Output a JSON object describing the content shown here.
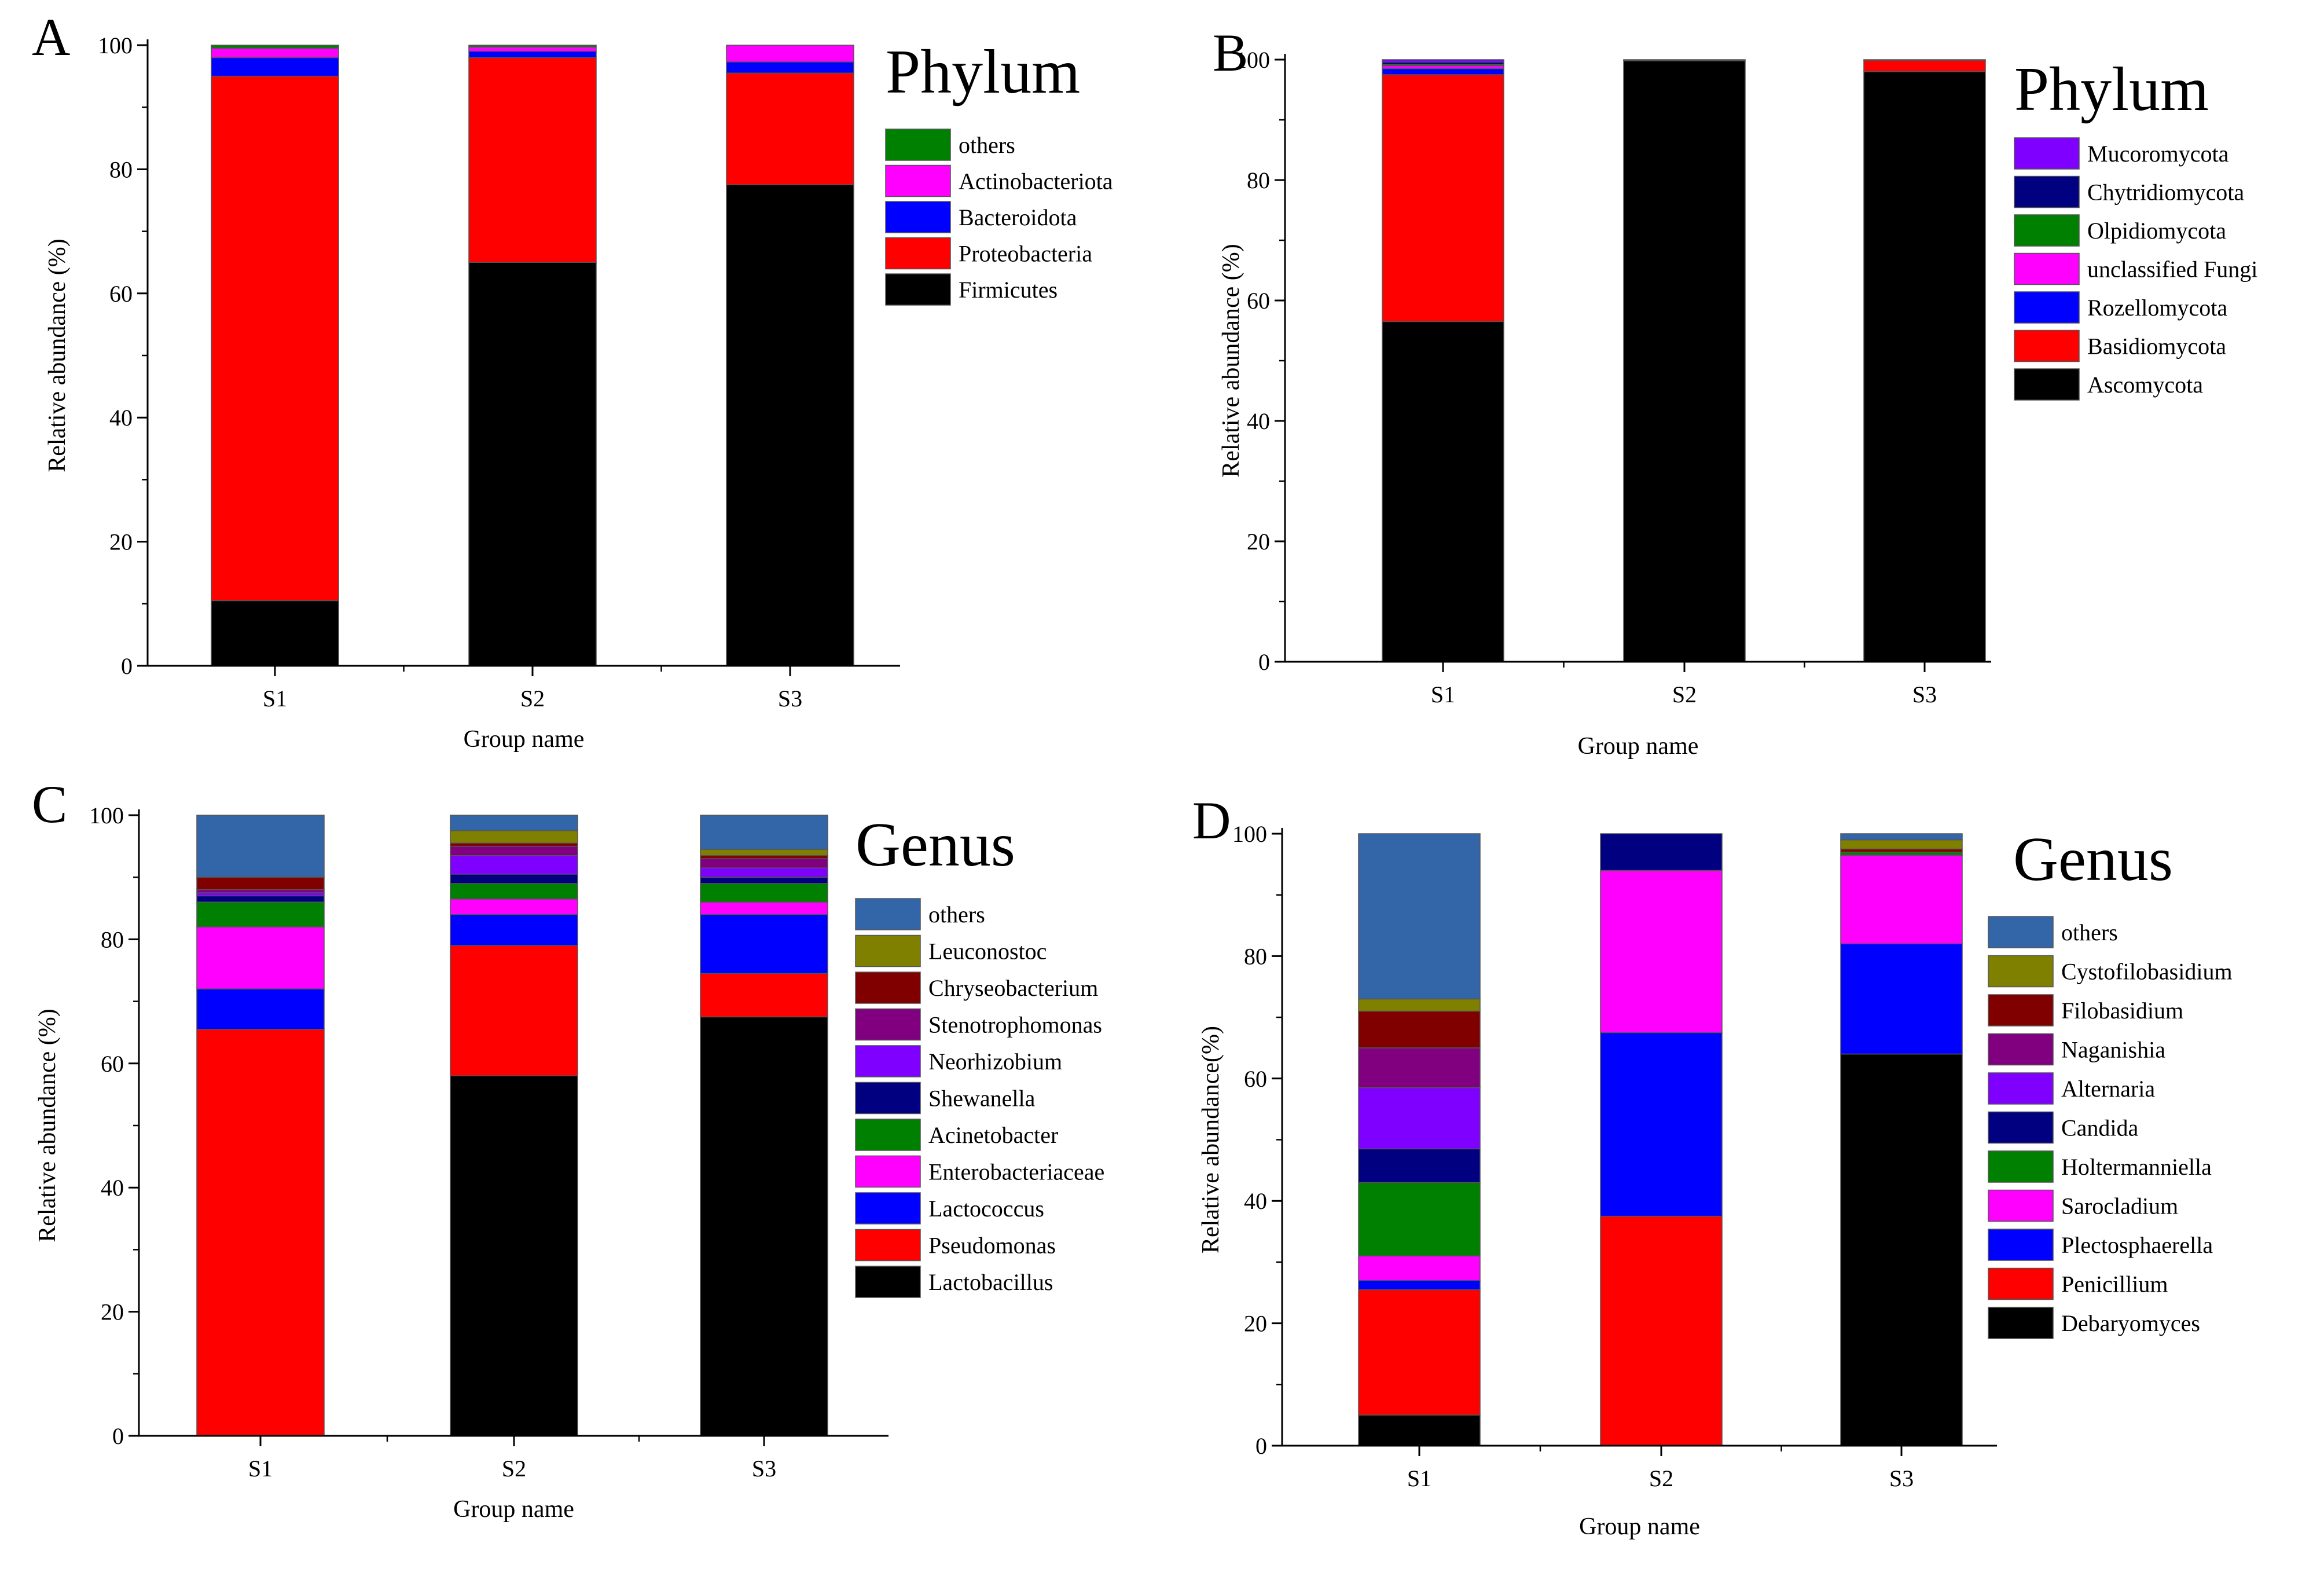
{
  "chart_data": [
    {
      "panel": "A",
      "type": "bar",
      "stacked": true,
      "title": "Phylum",
      "xlabel": "Group name",
      "ylabel": "Relative abundance (%)",
      "ylim": [
        0,
        100
      ],
      "yticks": [
        "0",
        "20",
        "40",
        "60",
        "80",
        "100"
      ],
      "categories": [
        "S1",
        "S2",
        "S3"
      ],
      "series": [
        {
          "name": "Firmicutes",
          "color": "#000000",
          "values": [
            10.5,
            65.0,
            77.5
          ]
        },
        {
          "name": "Proteobacteria",
          "color": "#ff0000",
          "values": [
            84.5,
            33.0,
            18.0
          ]
        },
        {
          "name": "Bacteroidota",
          "color": "#0000ff",
          "values": [
            3.0,
            1.0,
            1.8
          ]
        },
        {
          "name": "Actinobacteriota",
          "color": "#ff00ff",
          "values": [
            1.5,
            0.7,
            2.7
          ]
        },
        {
          "name": "others",
          "color": "#008000",
          "values": [
            0.5,
            0.3,
            0.0
          ]
        }
      ]
    },
    {
      "panel": "B",
      "type": "bar",
      "stacked": true,
      "title": "Phylum",
      "xlabel": "Group name",
      "ylabel": "Relative abundance (%)",
      "ylim": [
        0,
        100
      ],
      "yticks": [
        "0",
        "20",
        "40",
        "60",
        "80",
        "100"
      ],
      "categories": [
        "S1",
        "S2",
        "S3"
      ],
      "series": [
        {
          "name": "Ascomycota",
          "color": "#000000",
          "values": [
            56.5,
            99.8,
            98.0
          ]
        },
        {
          "name": "Basidiomycota",
          "color": "#ff0000",
          "values": [
            41.0,
            0.1,
            1.9
          ]
        },
        {
          "name": "Rozellomycota",
          "color": "#0000ff",
          "values": [
            1.0,
            0.0,
            0.0
          ]
        },
        {
          "name": "unclassified Fungi",
          "color": "#ff00ff",
          "values": [
            0.5,
            0.0,
            0.0
          ]
        },
        {
          "name": "Olpidiomycota",
          "color": "#008000",
          "values": [
            0.2,
            0.0,
            0.0
          ]
        },
        {
          "name": "Chytridiomycota",
          "color": "#000080",
          "values": [
            0.4,
            0.1,
            0.1
          ]
        },
        {
          "name": "Mucoromycota",
          "color": "#8000ff",
          "values": [
            0.4,
            0.0,
            0.0
          ]
        }
      ]
    },
    {
      "panel": "C",
      "type": "bar",
      "stacked": true,
      "title": "Genus",
      "xlabel": "Group name",
      "ylabel": "Relative abundance (%)",
      "ylim": [
        0,
        100
      ],
      "yticks": [
        "0",
        "20",
        "40",
        "60",
        "80",
        "100"
      ],
      "categories": [
        "S1",
        "S2",
        "S3"
      ],
      "series": [
        {
          "name": "Lactobacillus",
          "color": "#000000",
          "values": [
            0.0,
            58.0,
            67.5
          ]
        },
        {
          "name": "Pseudomonas",
          "color": "#ff0000",
          "values": [
            65.5,
            21.0,
            7.0
          ]
        },
        {
          "name": "Lactococcus",
          "color": "#0000ff",
          "values": [
            6.5,
            5.0,
            9.5
          ]
        },
        {
          "name": "Enterobacteriaceae",
          "color": "#ff00ff",
          "values": [
            10.0,
            2.5,
            2.0
          ]
        },
        {
          "name": "Acinetobacter",
          "color": "#008000",
          "values": [
            4.0,
            2.5,
            3.0
          ]
        },
        {
          "name": "Shewanella",
          "color": "#000080",
          "values": [
            1.0,
            1.5,
            1.0
          ]
        },
        {
          "name": "Neorhizobium",
          "color": "#8000ff",
          "values": [
            0.5,
            3.0,
            1.5
          ]
        },
        {
          "name": "Stenotrophomonas",
          "color": "#800080",
          "values": [
            0.5,
            1.5,
            1.5
          ]
        },
        {
          "name": "Chryseobacterium",
          "color": "#800000",
          "values": [
            2.0,
            0.5,
            0.5
          ]
        },
        {
          "name": "Leuconostoc",
          "color": "#808000",
          "values": [
            0.0,
            2.0,
            1.0
          ]
        },
        {
          "name": "others",
          "color": "#3366a8",
          "values": [
            10.0,
            2.5,
            5.5
          ]
        }
      ]
    },
    {
      "panel": "D",
      "type": "bar",
      "stacked": true,
      "title": "Genus",
      "xlabel": "Group name",
      "ylabel": "Relative abundance(%)",
      "ylim": [
        0,
        100
      ],
      "yticks": [
        "0",
        "20",
        "40",
        "60",
        "80",
        "100"
      ],
      "categories": [
        "S1",
        "S2",
        "S3"
      ],
      "series": [
        {
          "name": "Debaryomyces",
          "color": "#000000",
          "values": [
            5.0,
            0.0,
            64.0
          ]
        },
        {
          "name": "Penicillium",
          "color": "#ff0000",
          "values": [
            20.5,
            37.5,
            0.0
          ]
        },
        {
          "name": "Plectosphaerella",
          "color": "#0000ff",
          "values": [
            1.5,
            30.0,
            18.0
          ]
        },
        {
          "name": "Sarocladium",
          "color": "#ff00ff",
          "values": [
            4.0,
            26.5,
            14.5
          ]
        },
        {
          "name": "Holtermanniella",
          "color": "#008000",
          "values": [
            12.0,
            0.0,
            0.5
          ]
        },
        {
          "name": "Candida",
          "color": "#000080",
          "values": [
            5.5,
            6.0,
            0.0
          ]
        },
        {
          "name": "Alternaria",
          "color": "#8000ff",
          "values": [
            10.0,
            0.0,
            0.0
          ]
        },
        {
          "name": "Naganishia",
          "color": "#800080",
          "values": [
            6.5,
            0.0,
            0.0
          ]
        },
        {
          "name": "Filobasidium",
          "color": "#800000",
          "values": [
            6.0,
            0.0,
            0.5
          ]
        },
        {
          "name": "Cystofilobasidium",
          "color": "#808000",
          "values": [
            2.0,
            0.0,
            1.5
          ]
        },
        {
          "name": "others",
          "color": "#3366a8",
          "values": [
            27.0,
            0.0,
            1.0
          ]
        }
      ]
    }
  ]
}
